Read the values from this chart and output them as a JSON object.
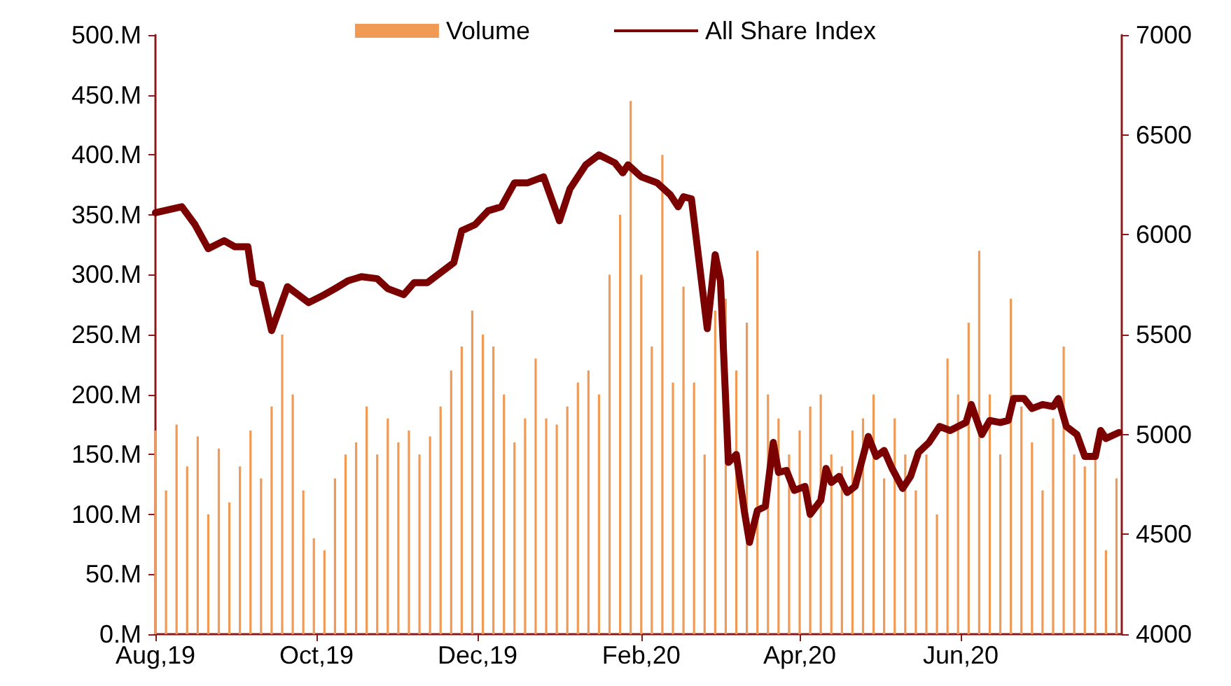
{
  "chart_data": {
    "type": "bar",
    "xlim": [
      "2019-08-01",
      "2020-08-01"
    ],
    "xticks": [
      {
        "value": "2019-08-01",
        "label": "Aug,19"
      },
      {
        "value": "2019-10-01",
        "label": "Oct,19"
      },
      {
        "value": "2019-12-01",
        "label": "Dec,19"
      },
      {
        "value": "2020-02-01",
        "label": "Feb,20"
      },
      {
        "value": "2020-04-01",
        "label": "Apr,20"
      },
      {
        "value": "2020-06-01",
        "label": "Jun,20"
      }
    ],
    "ylim": [
      0,
      500
    ],
    "yticks": [
      {
        "value": 0,
        "label": "0.M"
      },
      {
        "value": 50,
        "label": "50.M"
      },
      {
        "value": 100,
        "label": "100.M"
      },
      {
        "value": 150,
        "label": "150.M"
      },
      {
        "value": 200,
        "label": "200.M"
      },
      {
        "value": 250,
        "label": "250.M"
      },
      {
        "value": 300,
        "label": "300.M"
      },
      {
        "value": 350,
        "label": "350.M"
      },
      {
        "value": 400,
        "label": "400.M"
      },
      {
        "value": 450,
        "label": "450.M"
      },
      {
        "value": 500,
        "label": "500.M"
      }
    ],
    "y2lim": [
      4000,
      7000
    ],
    "y2ticks": [
      4000,
      4500,
      5000,
      5500,
      6000,
      6500,
      7000
    ],
    "legend": "top",
    "grid": false,
    "series": [
      {
        "name": "Volume",
        "color": "#f09a55",
        "x": [
          "2019-08-01",
          "2019-08-05",
          "2019-08-09",
          "2019-08-13",
          "2019-08-17",
          "2019-08-21",
          "2019-08-25",
          "2019-08-29",
          "2019-09-02",
          "2019-09-06",
          "2019-09-10",
          "2019-09-14",
          "2019-09-18",
          "2019-09-22",
          "2019-09-26",
          "2019-09-30",
          "2019-10-04",
          "2019-10-08",
          "2019-10-12",
          "2019-10-16",
          "2019-10-20",
          "2019-10-24",
          "2019-10-28",
          "2019-11-01",
          "2019-11-05",
          "2019-11-09",
          "2019-11-13",
          "2019-11-17",
          "2019-11-21",
          "2019-11-25",
          "2019-11-29",
          "2019-12-03",
          "2019-12-07",
          "2019-12-11",
          "2019-12-15",
          "2019-12-19",
          "2019-12-23",
          "2019-12-27",
          "2019-12-31",
          "2020-01-04",
          "2020-01-08",
          "2020-01-12",
          "2020-01-16",
          "2020-01-20",
          "2020-01-24",
          "2020-01-28",
          "2020-02-01",
          "2020-02-05",
          "2020-02-09",
          "2020-02-13",
          "2020-02-17",
          "2020-02-21",
          "2020-02-25",
          "2020-02-29",
          "2020-03-04",
          "2020-03-08",
          "2020-03-12",
          "2020-03-16",
          "2020-03-20",
          "2020-03-24",
          "2020-03-28",
          "2020-04-01",
          "2020-04-05",
          "2020-04-09",
          "2020-04-13",
          "2020-04-17",
          "2020-04-21",
          "2020-04-25",
          "2020-04-29",
          "2020-05-03",
          "2020-05-07",
          "2020-05-11",
          "2020-05-15",
          "2020-05-19",
          "2020-05-23",
          "2020-05-27",
          "2020-05-31",
          "2020-06-04",
          "2020-06-08",
          "2020-06-12",
          "2020-06-16",
          "2020-06-20",
          "2020-06-24",
          "2020-06-28",
          "2020-07-02",
          "2020-07-06",
          "2020-07-10",
          "2020-07-14",
          "2020-07-18",
          "2020-07-22",
          "2020-07-26",
          "2020-07-30"
        ],
        "values": [
          170,
          120,
          175,
          140,
          165,
          100,
          155,
          110,
          140,
          170,
          130,
          190,
          250,
          200,
          120,
          80,
          70,
          130,
          150,
          160,
          190,
          150,
          180,
          160,
          170,
          150,
          165,
          190,
          220,
          240,
          270,
          250,
          240,
          200,
          160,
          180,
          230,
          180,
          175,
          190,
          210,
          220,
          200,
          300,
          350,
          445,
          300,
          240,
          400,
          210,
          290,
          210,
          150,
          270,
          280,
          220,
          260,
          320,
          200,
          180,
          150,
          170,
          190,
          200,
          150,
          140,
          170,
          180,
          200,
          130,
          180,
          150,
          120,
          150,
          100,
          230,
          200,
          260,
          320,
          200,
          150,
          280,
          190,
          160,
          120,
          180,
          240,
          150,
          140,
          160,
          70,
          130
        ]
      },
      {
        "name": "All Share Index",
        "type": "line",
        "axis": "y2",
        "color": "#7b0000",
        "marker": "none",
        "x": [
          "2019-08-01",
          "2019-08-11",
          "2019-08-16",
          "2019-08-21",
          "2019-08-27",
          "2019-08-31",
          "2019-09-05",
          "2019-09-07",
          "2019-09-10",
          "2019-09-14",
          "2019-09-20",
          "2019-09-28",
          "2019-10-04",
          "2019-10-08",
          "2019-10-13",
          "2019-10-18",
          "2019-10-24",
          "2019-10-28",
          "2019-11-03",
          "2019-11-07",
          "2019-11-12",
          "2019-11-17",
          "2019-11-22",
          "2019-11-25",
          "2019-11-30",
          "2019-12-05",
          "2019-12-10",
          "2019-12-15",
          "2019-12-20",
          "2019-12-26",
          "2020-01-01",
          "2020-01-05",
          "2020-01-11",
          "2020-01-16",
          "2020-01-22",
          "2020-01-25",
          "2020-01-27",
          "2020-02-01",
          "2020-02-07",
          "2020-02-12",
          "2020-02-15",
          "2020-02-17",
          "2020-02-20",
          "2020-02-26",
          "2020-02-29",
          "2020-03-02",
          "2020-03-05",
          "2020-03-08",
          "2020-03-11",
          "2020-03-13",
          "2020-03-16",
          "2020-03-19",
          "2020-03-22",
          "2020-03-24",
          "2020-03-27",
          "2020-03-30",
          "2020-04-03",
          "2020-04-05",
          "2020-04-09",
          "2020-04-11",
          "2020-04-13",
          "2020-04-16",
          "2020-04-19",
          "2020-04-22",
          "2020-04-27",
          "2020-04-30",
          "2020-05-03",
          "2020-05-06",
          "2020-05-10",
          "2020-05-13",
          "2020-05-16",
          "2020-05-20",
          "2020-05-24",
          "2020-05-28",
          "2020-06-03",
          "2020-06-05",
          "2020-06-09",
          "2020-06-12",
          "2020-06-16",
          "2020-06-19",
          "2020-06-21",
          "2020-06-25",
          "2020-06-28",
          "2020-07-02",
          "2020-07-06",
          "2020-07-08",
          "2020-07-11",
          "2020-07-15",
          "2020-07-18",
          "2020-07-22",
          "2020-07-24",
          "2020-07-26",
          "2020-07-31"
        ],
        "values": [
          6110,
          6140,
          6050,
          5930,
          5970,
          5940,
          5940,
          5760,
          5750,
          5520,
          5740,
          5660,
          5700,
          5730,
          5770,
          5790,
          5780,
          5730,
          5700,
          5760,
          5760,
          5810,
          5860,
          6020,
          6050,
          6120,
          6140,
          6260,
          6260,
          6290,
          6070,
          6230,
          6350,
          6400,
          6360,
          6310,
          6350,
          6290,
          6260,
          6200,
          6140,
          6190,
          6180,
          5530,
          5900,
          5770,
          4860,
          4900,
          4620,
          4460,
          4620,
          4640,
          4960,
          4810,
          4820,
          4720,
          4740,
          4600,
          4670,
          4830,
          4760,
          4790,
          4710,
          4740,
          4990,
          4890,
          4920,
          4830,
          4730,
          4790,
          4910,
          4960,
          5040,
          5020,
          5060,
          5150,
          5000,
          5070,
          5060,
          5070,
          5180,
          5180,
          5130,
          5150,
          5140,
          5180,
          5040,
          5000,
          4890,
          4890,
          5020,
          4980,
          5010
        ]
      }
    ]
  }
}
